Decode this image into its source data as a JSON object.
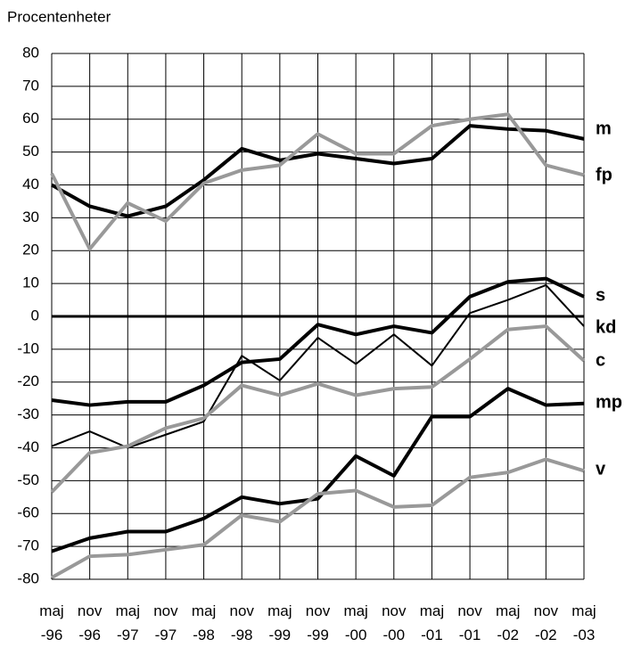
{
  "chart_data": {
    "type": "line",
    "y_label": "Procentenheter",
    "categories": [
      "maj -96",
      "nov -96",
      "maj -97",
      "nov -97",
      "maj -98",
      "nov -98",
      "maj -99",
      "nov -99",
      "maj -00",
      "nov -00",
      "maj -01",
      "nov -01",
      "maj -02",
      "nov -02",
      "maj -03"
    ],
    "ylim": [
      -80,
      80
    ],
    "yticks": [
      -80,
      -70,
      -60,
      -50,
      -40,
      -30,
      -20,
      -10,
      0,
      10,
      20,
      30,
      40,
      50,
      60,
      70,
      80
    ],
    "grid": true,
    "series": [
      {
        "name": "m",
        "color": "#000000",
        "line_width": 4,
        "values": [
          40,
          33.5,
          30.5,
          33.5,
          41.5,
          51,
          47.5,
          49.5,
          48,
          46.5,
          48,
          58,
          57,
          56.5,
          54
        ]
      },
      {
        "name": "fp",
        "color": "#999999",
        "line_width": 4,
        "values": [
          43.5,
          20.5,
          34.5,
          29,
          40.5,
          44.5,
          46,
          55.5,
          49.5,
          49.5,
          58,
          60,
          61.5,
          46,
          43
        ]
      },
      {
        "name": "s",
        "color": "#000000",
        "line_width": 4,
        "values": [
          -25.5,
          -27,
          -26,
          -26,
          -21,
          -14,
          -13,
          -2.5,
          -5.5,
          -3,
          -5,
          6,
          10.5,
          11.5,
          6
        ]
      },
      {
        "name": "kd",
        "color": "#000000",
        "line_width": 2,
        "values": [
          -39.5,
          -35,
          -40,
          -36,
          -32,
          -12,
          -19.5,
          -6.5,
          -14.5,
          -5.5,
          -15,
          1,
          5,
          9.5,
          -3
        ]
      },
      {
        "name": "c",
        "color": "#999999",
        "line_width": 4,
        "values": [
          -53.5,
          -41.5,
          -39.5,
          -34,
          -31,
          -21,
          -24,
          -20.5,
          -24,
          -22,
          -21.5,
          -13,
          -4,
          -3,
          -13.5
        ]
      },
      {
        "name": "mp",
        "color": "#000000",
        "line_width": 4,
        "values": [
          -71.5,
          -67.5,
          -65.5,
          -65.5,
          -61.5,
          -55,
          -57,
          -55.5,
          -42.5,
          -48.5,
          -30.5,
          -30.5,
          -22,
          -27,
          -26.5
        ]
      },
      {
        "name": "v",
        "color": "#999999",
        "line_width": 4,
        "values": [
          -79.5,
          -73,
          -72.5,
          -71,
          -69.5,
          -60.5,
          -62.5,
          -54,
          -53,
          -58,
          -57.5,
          -49,
          -47.5,
          -43.5,
          -47
        ]
      }
    ]
  }
}
